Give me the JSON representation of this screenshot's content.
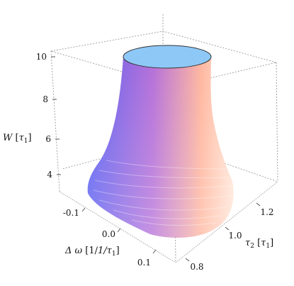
{
  "chart_data": {
    "type": "surface3d",
    "title": "",
    "zlabel": {
      "symbol": "W",
      "unit": "τ",
      "unit_sub": "1"
    },
    "xlabel": {
      "prefix": "Δ ω",
      "unit": "1/τ",
      "unit_sub": "1"
    },
    "ylabel": {
      "symbol": "τ",
      "symbol_sub": "2",
      "unit": "τ",
      "unit_sub": "1"
    },
    "z_ticks": [
      "4",
      "6",
      "8",
      "10"
    ],
    "x_ticks": [
      "-0.1",
      "0.0",
      "0.1"
    ],
    "y_ticks": [
      "0.8",
      "1.0",
      "1.2"
    ],
    "xlim": [
      -0.15,
      0.15
    ],
    "ylim": [
      0.75,
      1.3
    ],
    "zlim": [
      3,
      10.5
    ],
    "box_style": "dashed",
    "colors": {
      "top_cap": "#8ec8f7",
      "left_side": "#5b5ef0",
      "center": "#b670d8",
      "right_side": "#ffb79f",
      "highlight": "#ffe6d8"
    },
    "surface_outline": [
      {
        "z": 3.2,
        "width_fraction": 1.0
      },
      {
        "z": 4.0,
        "width_fraction": 0.9
      },
      {
        "z": 5.0,
        "width_fraction": 0.72
      },
      {
        "z": 6.0,
        "width_fraction": 0.6
      },
      {
        "z": 7.0,
        "width_fraction": 0.53
      },
      {
        "z": 8.0,
        "width_fraction": 0.5
      },
      {
        "z": 9.0,
        "width_fraction": 0.48
      },
      {
        "z": 10.0,
        "width_fraction": 0.47
      }
    ]
  }
}
